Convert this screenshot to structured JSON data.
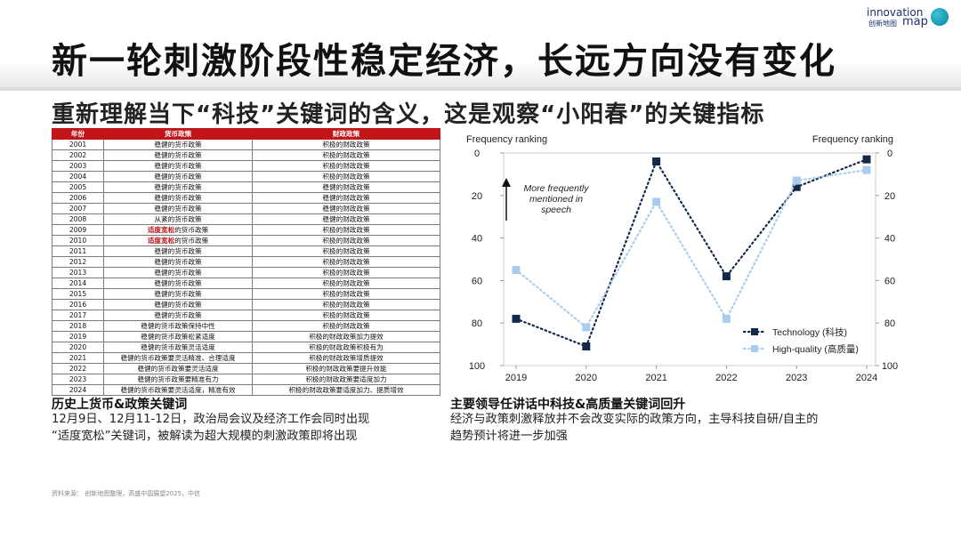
{
  "header": {
    "title": "新一轮刺激阶段性稳定经济，长远方向没有变化",
    "logo": {
      "line1": "innovation",
      "line2": "创新地图",
      "line3": "map"
    }
  },
  "subtitle": "重新理解当下“科技”关键词的含义，这是观察“小阳春”的关键指标",
  "policy_table": {
    "headers": [
      "年份",
      "货币政策",
      "财政政策"
    ],
    "rows": [
      [
        "2001",
        "稳健的货币政策",
        "积极的财政政策"
      ],
      [
        "2002",
        "稳健的货币政策",
        "积极的财政政策"
      ],
      [
        "2003",
        "稳健的货币政策",
        "积极的财政政策"
      ],
      [
        "2004",
        "稳健的货币政策",
        "积极的财政政策"
      ],
      [
        "2005",
        "稳健的货币政策",
        "稳健的财政政策"
      ],
      [
        "2006",
        "稳健的货币政策",
        "稳健的财政政策"
      ],
      [
        "2007",
        "稳健的货币政策",
        "稳健的财政政策"
      ],
      [
        "2008",
        "从紧的货币政策",
        "稳健的财政政策"
      ],
      [
        "2009",
        "适度宽松的货币政策",
        "积极的财政政策"
      ],
      [
        "2010",
        "适度宽松的货币政策",
        "积极的财政政策"
      ],
      [
        "2011",
        "稳健的货币政策",
        "积极的财政政策"
      ],
      [
        "2012",
        "稳健的货币政策",
        "积极的财政政策"
      ],
      [
        "2013",
        "稳健的货币政策",
        "积极的财政政策"
      ],
      [
        "2014",
        "稳健的货币政策",
        "积极的财政政策"
      ],
      [
        "2015",
        "稳健的货币政策",
        "积极的财政政策"
      ],
      [
        "2016",
        "稳健的货币政策",
        "积极的财政政策"
      ],
      [
        "2017",
        "稳健的货币政策",
        "积极的财政政策"
      ],
      [
        "2018",
        "稳健的货币政策保持中性",
        "积极的财政政策"
      ],
      [
        "2019",
        "稳健的货币政策松紧适度",
        "积极的财政政策加力提效"
      ],
      [
        "2020",
        "稳健的货币政策灵活适度",
        "积极的财政政策积极有为"
      ],
      [
        "2021",
        "稳健的货币政策要灵活精准、合理适度",
        "积极的财政政策增质提效"
      ],
      [
        "2022",
        "稳健的货币政策要灵活适度",
        "积极的财政政策要提升效能"
      ],
      [
        "2023",
        "稳健的货币政策要精准有力",
        "积极的财政政策要适度加力"
      ],
      [
        "2024",
        "稳健的货币政策要灵活适度，精准有效",
        "积极的财政政策要适度加力、提质增效"
      ]
    ],
    "highlight_phrase": "适度宽松",
    "highlight_color": "#c0161a"
  },
  "caption_left": {
    "title": "历史上货币&政策关键词",
    "lines": [
      "12月9日、12月11-12日，政治局会议及经济工作会同时出现",
      "“适度宽松”关键词，被解读为超大规模的刺激政策即将出现"
    ]
  },
  "caption_right": {
    "title": "主要领导任讲话中科技&高质量关键词回升",
    "lines": [
      "经济与政策刺激释放并不会改变实际的政策方向，主导科技自研/自主的",
      "趋势预计将进一步加强"
    ]
  },
  "source": "资料来源：  创新地图整理，高盛中国展望2025，中信",
  "chart_data": {
    "type": "line",
    "categories": [
      "2019",
      "2020",
      "2021",
      "2022",
      "2023",
      "2024"
    ],
    "series": [
      {
        "name": "Technology (科技)",
        "values": [
          78,
          91,
          4,
          58,
          16,
          3
        ],
        "color": "#13294b",
        "style": "dotted",
        "marker": "square"
      },
      {
        "name": "High-quality (高质量)",
        "values": [
          55,
          82,
          23,
          78,
          13,
          8
        ],
        "color": "#a9cdee",
        "style": "dotted",
        "marker": "square"
      }
    ],
    "ylabel_left": "Frequency ranking",
    "ylabel_right": "Frequency ranking",
    "ylim": [
      100,
      0
    ],
    "y_ticks": [
      0,
      20,
      40,
      60,
      80,
      100
    ],
    "annotation": [
      "More frequently",
      "mentioned in",
      "speech"
    ],
    "legend_position": "bottom-right",
    "grid": false
  }
}
